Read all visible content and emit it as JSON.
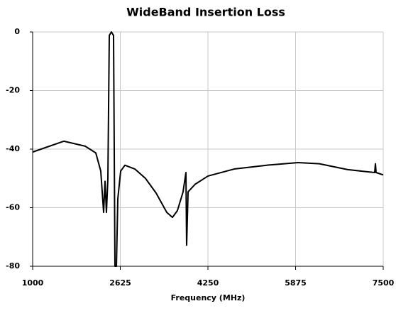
{
  "chart_data": {
    "type": "line",
    "title": "WideBand Insertion Loss",
    "x_label": "Frequency (MHz)",
    "x": [
      1000,
      1580,
      1974,
      2171,
      2263,
      2316,
      2342,
      2368,
      2395,
      2421,
      2460,
      2500,
      2526,
      2553,
      2579,
      2632,
      2711,
      2895,
      3092,
      3289,
      3487,
      3592,
      3684,
      3789,
      3842,
      3855,
      3882,
      4013,
      4250,
      4737,
      5395,
      5921,
      6316,
      6842,
      7342,
      7355,
      7368,
      7500
    ],
    "series": [
      {
        "color": "#000000",
        "values": [
          -41,
          -37.3,
          -39,
          -41.3,
          -47.5,
          -61.6,
          -51,
          -61.6,
          -50,
          -1.2,
          0,
          -1.2,
          -80,
          -80,
          -57,
          -47.5,
          -45.5,
          -46.8,
          -50,
          -55,
          -61.6,
          -63.3,
          -61,
          -54.6,
          -48,
          -72.8,
          -54.6,
          -52,
          -49.2,
          -46.8,
          -45.4,
          -44.6,
          -45,
          -47,
          -48,
          -45,
          -48,
          -48.8
        ]
      }
    ],
    "xlim": [
      1000,
      7500
    ],
    "xticks": [
      1000,
      2625,
      4250,
      5875,
      7500
    ],
    "ylim": [
      -80,
      0
    ],
    "yticks": [
      0,
      -20,
      -40,
      -60,
      -80
    ],
    "grid": true
  }
}
